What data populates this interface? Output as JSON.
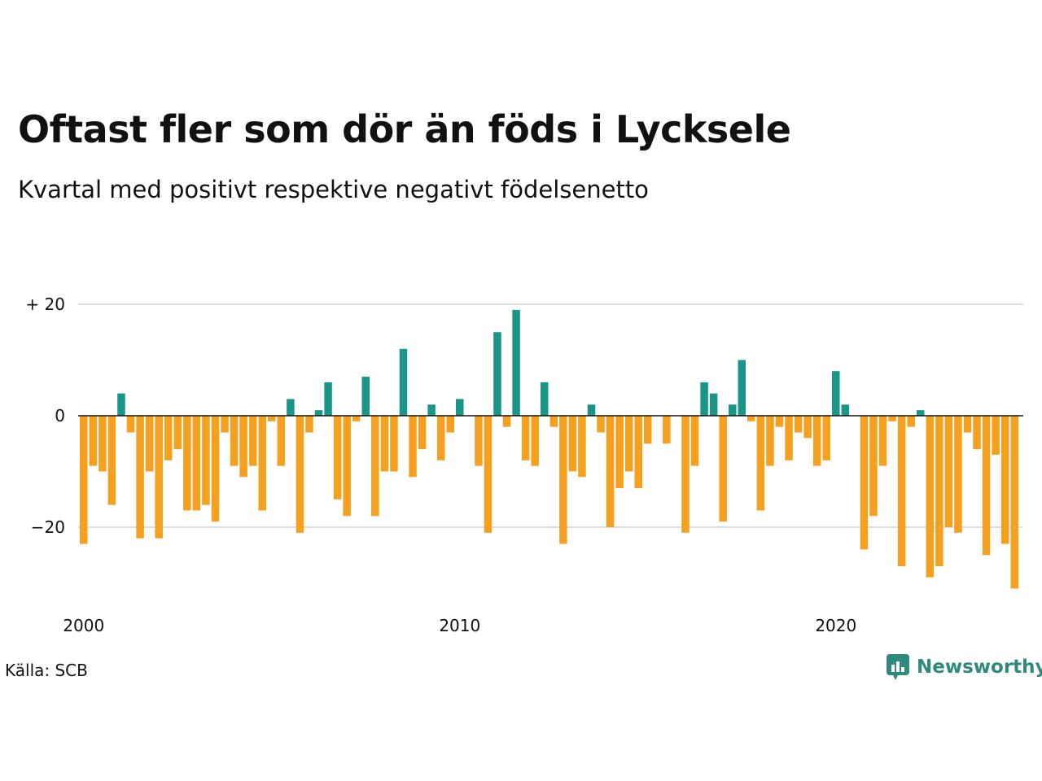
{
  "title": "Oftast fler som dör än föds i Lycksele",
  "subtitle": "Kvartal med positivt respektive negativt födelsenetto",
  "source": "Källa: SCB",
  "brand": "Newsworthy",
  "colors": {
    "positive": "#1a9688",
    "negative": "#f5a01f",
    "grid": "#dddddd",
    "zero": "#111111",
    "brand": "#2e8a7d"
  },
  "chart_data": {
    "type": "bar",
    "title": "Oftast fler som dör än föds i Lycksele",
    "subtitle": "Kvartal med positivt respektive negativt födelsenetto",
    "xlabel": "",
    "ylabel": "",
    "x_start_year": 2000,
    "periods_per_year": 4,
    "ylim": [
      -32,
      23
    ],
    "yticks": [
      20,
      0,
      -20
    ],
    "ytick_labels": [
      "+ 20",
      "0",
      "−20"
    ],
    "xticks": [
      2000,
      2010,
      2020
    ],
    "xtick_labels": [
      "2000",
      "2010",
      "2020"
    ],
    "grid": true,
    "values": [
      -23,
      -9,
      -10,
      -16,
      4,
      -3,
      -22,
      -10,
      -22,
      -8,
      -6,
      -17,
      -17,
      -16,
      -19,
      -3,
      -9,
      -11,
      -9,
      -17,
      -1,
      -9,
      3,
      -21,
      -3,
      1,
      6,
      -15,
      -18,
      -1,
      7,
      -18,
      -10,
      -10,
      12,
      -11,
      -6,
      2,
      -8,
      -3,
      3,
      0,
      -9,
      -21,
      15,
      -2,
      19,
      -8,
      -9,
      6,
      -2,
      -23,
      -10,
      -11,
      2,
      -3,
      -20,
      -13,
      -10,
      -13,
      -5,
      0,
      -5,
      0,
      -21,
      -9,
      6,
      4,
      -19,
      2,
      10,
      -1,
      -17,
      -9,
      -2,
      -8,
      -3,
      -4,
      -9,
      -8,
      8,
      2,
      0,
      -24,
      -18,
      -9,
      -1,
      -27,
      -2,
      1,
      -29,
      -27,
      -20,
      -21,
      -3,
      -6,
      -25,
      -7,
      -23,
      -31
    ]
  }
}
